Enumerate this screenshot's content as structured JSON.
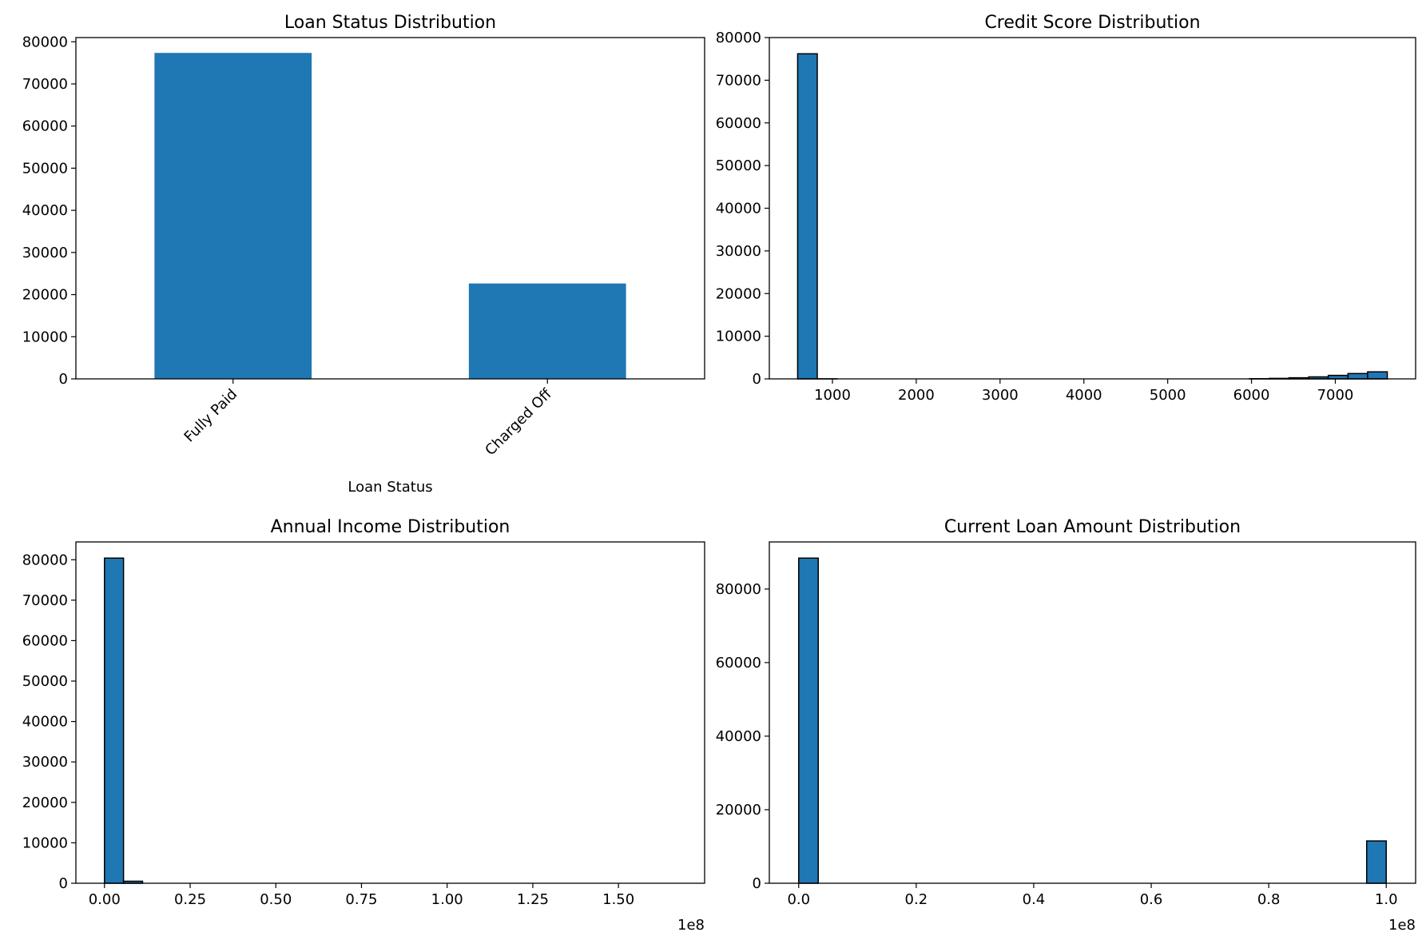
{
  "chart_data": [
    {
      "type": "bar",
      "title": "Loan Status Distribution",
      "xlabel": "Loan Status",
      "ylabel": "",
      "categories": [
        "Fully Paid",
        "Charged Off"
      ],
      "values": [
        77361,
        22639
      ],
      "ylim": [
        0,
        81000
      ],
      "yticks": [
        0,
        10000,
        20000,
        30000,
        40000,
        50000,
        60000,
        70000,
        80000
      ],
      "ytick_labels": [
        "0",
        "10000",
        "20000",
        "30000",
        "40000",
        "50000",
        "60000",
        "70000",
        "80000"
      ],
      "color": "#1f77b4",
      "grid": false
    },
    {
      "type": "histogram",
      "title": "Credit Score Distribution",
      "xlabel": "",
      "ylabel": "",
      "bins": [
        [
          585,
          819,
          76200
        ],
        [
          819,
          1054,
          20
        ],
        [
          1054,
          1288,
          0
        ],
        [
          1288,
          1523,
          0
        ],
        [
          1523,
          1757,
          0
        ],
        [
          1757,
          1992,
          0
        ],
        [
          1992,
          2226,
          0
        ],
        [
          2226,
          2461,
          0
        ],
        [
          2461,
          2695,
          0
        ],
        [
          2695,
          2930,
          0
        ],
        [
          2930,
          3164,
          0
        ],
        [
          3164,
          3399,
          0
        ],
        [
          3399,
          3633,
          0
        ],
        [
          3633,
          3868,
          0
        ],
        [
          3868,
          4102,
          0
        ],
        [
          4102,
          4337,
          0
        ],
        [
          4337,
          4571,
          0
        ],
        [
          4571,
          4806,
          0
        ],
        [
          4806,
          5040,
          0
        ],
        [
          5040,
          5275,
          0
        ],
        [
          5275,
          5509,
          0
        ],
        [
          5509,
          5744,
          0
        ],
        [
          5744,
          5978,
          0
        ],
        [
          5978,
          6213,
          50
        ],
        [
          6213,
          6447,
          120
        ],
        [
          6447,
          6682,
          260
        ],
        [
          6682,
          6916,
          470
        ],
        [
          6916,
          7151,
          820
        ],
        [
          7151,
          7385,
          1250
        ],
        [
          7385,
          7620,
          1650
        ]
      ],
      "xlim": [
        247,
        7958
      ],
      "xticks": [
        1000,
        2000,
        3000,
        4000,
        5000,
        6000,
        7000
      ],
      "xtick_labels": [
        "1000",
        "2000",
        "3000",
        "4000",
        "5000",
        "6000",
        "7000"
      ],
      "ylim": [
        0,
        80000
      ],
      "yticks": [
        0,
        10000,
        20000,
        30000,
        40000,
        50000,
        60000,
        70000,
        80000
      ],
      "ytick_labels": [
        "0",
        "10000",
        "20000",
        "30000",
        "40000",
        "50000",
        "60000",
        "70000",
        "80000"
      ],
      "color": "#1f77b4",
      "edgecolor": "#000000",
      "grid": false
    },
    {
      "type": "histogram",
      "title": "Annual Income Distribution",
      "xlabel": "",
      "ylabel": "",
      "bins": [
        [
          0,
          5560000,
          80400
        ],
        [
          5560000,
          11120000,
          500
        ]
      ],
      "xlim": [
        -8340000,
        175140000
      ],
      "xticks": [
        0,
        25000000,
        50000000,
        75000000,
        100000000,
        125000000,
        150000000
      ],
      "xtick_labels": [
        "0.00",
        "0.25",
        "0.50",
        "0.75",
        "1.00",
        "1.25",
        "1.50"
      ],
      "x_offset_label": "1e8",
      "ylim": [
        0,
        84400
      ],
      "yticks": [
        0,
        10000,
        20000,
        30000,
        40000,
        50000,
        60000,
        70000,
        80000
      ],
      "ytick_labels": [
        "0",
        "10000",
        "20000",
        "30000",
        "40000",
        "50000",
        "60000",
        "70000",
        "80000"
      ],
      "color": "#1f77b4",
      "edgecolor": "#000000",
      "grid": false
    },
    {
      "type": "histogram",
      "title": "Current Loan Amount Distribution",
      "xlabel": "",
      "ylabel": "",
      "bins": [
        [
          0,
          3330000,
          88400
        ],
        [
          96670000,
          100000000,
          11500
        ]
      ],
      "xlim": [
        -5000000,
        105000000
      ],
      "xticks": [
        0,
        20000000,
        40000000,
        60000000,
        80000000,
        100000000
      ],
      "xtick_labels": [
        "0.0",
        "0.2",
        "0.4",
        "0.6",
        "0.8",
        "1.0"
      ],
      "x_offset_label": "1e8",
      "ylim": [
        0,
        92800
      ],
      "yticks": [
        0,
        20000,
        40000,
        60000,
        80000
      ],
      "ytick_labels": [
        "0",
        "20000",
        "40000",
        "60000",
        "80000"
      ],
      "color": "#1f77b4",
      "edgecolor": "#000000",
      "grid": false
    }
  ]
}
